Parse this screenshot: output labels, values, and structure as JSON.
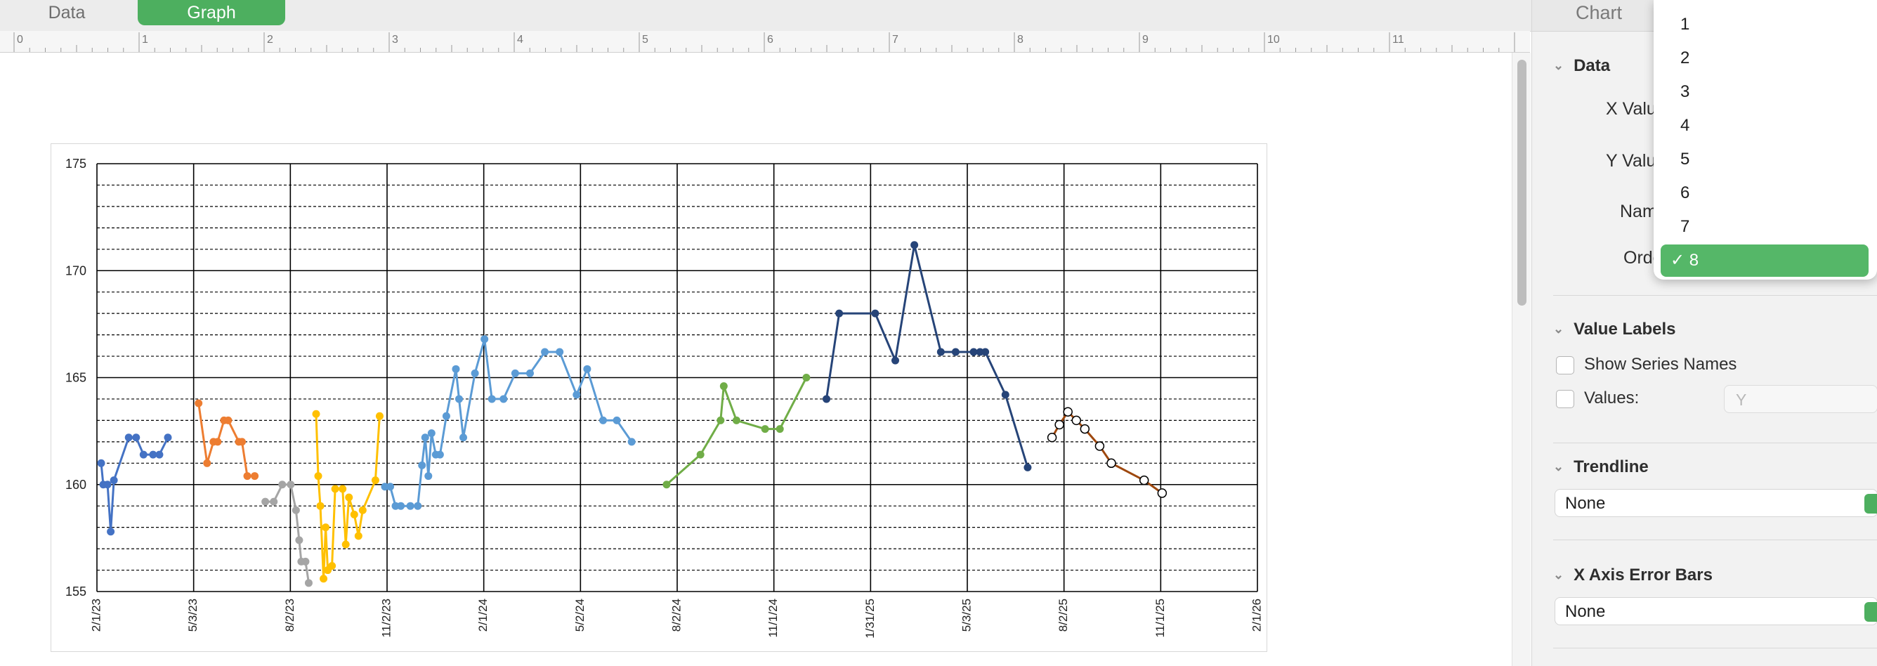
{
  "tabs": [
    {
      "label": "Data"
    },
    {
      "label": "Graph",
      "active": true
    }
  ],
  "ruler": {
    "labels": [
      "0",
      "1",
      "2",
      "3",
      "4",
      "5",
      "6",
      "7",
      "8",
      "9",
      "10",
      "11"
    ]
  },
  "sidebar": {
    "title": "Chart",
    "data_section": {
      "title": "Data",
      "x_values_label": "X Valu",
      "y_values_label": "Y Valu",
      "name_label": "Nam",
      "order_label": "Orde"
    },
    "value_labels": {
      "title": "Value Labels",
      "show_series_names": "Show Series Names",
      "values_label": "Values:",
      "values_select": "Y"
    },
    "trendline": {
      "title": "Trendline",
      "value": "None"
    },
    "x_error_bars": {
      "title": "X Axis Error Bars",
      "value": "None"
    }
  },
  "dropdown": {
    "options": [
      "1",
      "2",
      "3",
      "4",
      "5",
      "6",
      "7",
      "8"
    ],
    "selected": "8",
    "check_mark": "✓"
  },
  "colors": {
    "accent": "#4daf5f",
    "series": [
      "#4472c4",
      "#ed7d31",
      "#a5a5a5",
      "#ffc000",
      "#5b9bd5",
      "#70ad47",
      "#264478",
      "#9e480e"
    ]
  },
  "chart_data": {
    "type": "line",
    "x_type": "date",
    "xlim": [
      "2023-02-01",
      "2026-02-01"
    ],
    "ylim": [
      155,
      175
    ],
    "grid": true,
    "x_ticks": [
      "2/1/23",
      "5/3/23",
      "8/2/23",
      "11/2/23",
      "2/1/24",
      "5/2/24",
      "8/2/24",
      "11/1/24",
      "1/31/25",
      "5/3/25",
      "8/2/25",
      "11/1/25",
      "2/1/26"
    ],
    "y_ticks": [
      "155",
      "160",
      "165",
      "170",
      "175"
    ],
    "series": [
      {
        "color": "#4472c4",
        "points": [
          [
            "2023-02-05",
            161.0
          ],
          [
            "2023-02-07",
            160.0
          ],
          [
            "2023-02-11",
            160.0
          ],
          [
            "2023-02-14",
            157.8
          ],
          [
            "2023-02-17",
            160.2
          ],
          [
            "2023-03-03",
            162.2
          ],
          [
            "2023-03-10",
            162.2
          ],
          [
            "2023-03-17",
            161.4
          ],
          [
            "2023-03-26",
            161.4
          ],
          [
            "2023-04-01",
            161.4
          ],
          [
            "2023-04-09",
            162.2
          ]
        ]
      },
      {
        "color": "#ed7d31",
        "points": [
          [
            "2023-05-08",
            163.8
          ],
          [
            "2023-05-16",
            161.0
          ],
          [
            "2023-05-22",
            162.0
          ],
          [
            "2023-05-26",
            162.0
          ],
          [
            "2023-06-01",
            163.0
          ],
          [
            "2023-06-05",
            163.0
          ],
          [
            "2023-06-15",
            162.0
          ],
          [
            "2023-06-18",
            162.0
          ],
          [
            "2023-06-23",
            160.4
          ],
          [
            "2023-06-30",
            160.4
          ]
        ]
      },
      {
        "color": "#a5a5a5",
        "points": [
          [
            "2023-07-10",
            159.2
          ],
          [
            "2023-07-18",
            159.2
          ],
          [
            "2023-07-26",
            160.0
          ],
          [
            "2023-08-03",
            160.0
          ],
          [
            "2023-08-08",
            158.8
          ],
          [
            "2023-08-11",
            157.4
          ],
          [
            "2023-08-13",
            156.4
          ],
          [
            "2023-08-17",
            156.4
          ],
          [
            "2023-08-20",
            155.4
          ]
        ]
      },
      {
        "color": "#ffc000",
        "points": [
          [
            "2023-08-27",
            163.3
          ],
          [
            "2023-08-29",
            160.4
          ],
          [
            "2023-08-31",
            159.0
          ],
          [
            "2023-09-03",
            155.6
          ],
          [
            "2023-09-05",
            158.0
          ],
          [
            "2023-09-07",
            156.0
          ],
          [
            "2023-09-11",
            156.2
          ],
          [
            "2023-09-14",
            159.8
          ],
          [
            "2023-09-21",
            159.8
          ],
          [
            "2023-09-24",
            157.2
          ],
          [
            "2023-09-27",
            159.4
          ],
          [
            "2023-10-02",
            158.6
          ],
          [
            "2023-10-06",
            157.6
          ],
          [
            "2023-10-10",
            158.8
          ],
          [
            "2023-10-22",
            160.2
          ],
          [
            "2023-10-26",
            163.2
          ]
        ]
      },
      {
        "color": "#5b9bd5",
        "points": [
          [
            "2023-10-31",
            159.9
          ],
          [
            "2023-11-05",
            159.9
          ],
          [
            "2023-11-10",
            159.0
          ],
          [
            "2023-11-15",
            159.0
          ],
          [
            "2023-11-24",
            159.0
          ],
          [
            "2023-12-01",
            159.0
          ],
          [
            "2023-12-05",
            160.9
          ],
          [
            "2023-12-08",
            162.2
          ],
          [
            "2023-12-11",
            160.4
          ],
          [
            "2023-12-14",
            162.4
          ],
          [
            "2023-12-18",
            161.4
          ],
          [
            "2023-12-22",
            161.4
          ],
          [
            "2023-12-28",
            163.2
          ],
          [
            "2024-01-06",
            165.4
          ],
          [
            "2024-01-09",
            164.0
          ],
          [
            "2024-01-13",
            162.2
          ],
          [
            "2024-01-24",
            165.2
          ],
          [
            "2024-02-02",
            166.8
          ],
          [
            "2024-02-09",
            164.0
          ],
          [
            "2024-02-20",
            164.0
          ],
          [
            "2024-03-02",
            165.2
          ],
          [
            "2024-03-16",
            165.2
          ],
          [
            "2024-03-30",
            166.2
          ],
          [
            "2024-04-13",
            166.2
          ],
          [
            "2024-04-29",
            164.2
          ],
          [
            "2024-05-09",
            165.4
          ],
          [
            "2024-05-24",
            163.0
          ],
          [
            "2024-06-06",
            163.0
          ],
          [
            "2024-06-20",
            162.0
          ]
        ]
      },
      {
        "color": "#70ad47",
        "points": [
          [
            "2024-07-23",
            160.0
          ],
          [
            "2024-08-24",
            161.4
          ],
          [
            "2024-09-12",
            163.0
          ],
          [
            "2024-09-15",
            164.6
          ],
          [
            "2024-09-27",
            163.0
          ],
          [
            "2024-10-24",
            162.6
          ],
          [
            "2024-11-07",
            162.6
          ],
          [
            "2024-12-02",
            165.0
          ]
        ]
      },
      {
        "color": "#264478",
        "points": [
          [
            "2024-12-21",
            164.0
          ],
          [
            "2025-01-02",
            168.0
          ],
          [
            "2025-02-05",
            168.0
          ],
          [
            "2025-02-24",
            165.8
          ],
          [
            "2025-03-14",
            171.2
          ],
          [
            "2025-04-08",
            166.2
          ],
          [
            "2025-04-22",
            166.2
          ],
          [
            "2025-05-09",
            166.2
          ],
          [
            "2025-05-15",
            166.2
          ],
          [
            "2025-05-20",
            166.2
          ],
          [
            "2025-06-08",
            164.2
          ],
          [
            "2025-06-29",
            160.8
          ]
        ]
      },
      {
        "color": "#9e480e",
        "points": [
          [
            "2025-07-22",
            162.2
          ],
          [
            "2025-07-29",
            162.8
          ],
          [
            "2025-08-06",
            163.4
          ],
          [
            "2025-08-14",
            163.0
          ],
          [
            "2025-08-22",
            162.6
          ],
          [
            "2025-09-05",
            161.8
          ],
          [
            "2025-09-16",
            161.0
          ],
          [
            "2025-10-17",
            160.2
          ],
          [
            "2025-11-03",
            159.6
          ]
        ]
      }
    ]
  }
}
